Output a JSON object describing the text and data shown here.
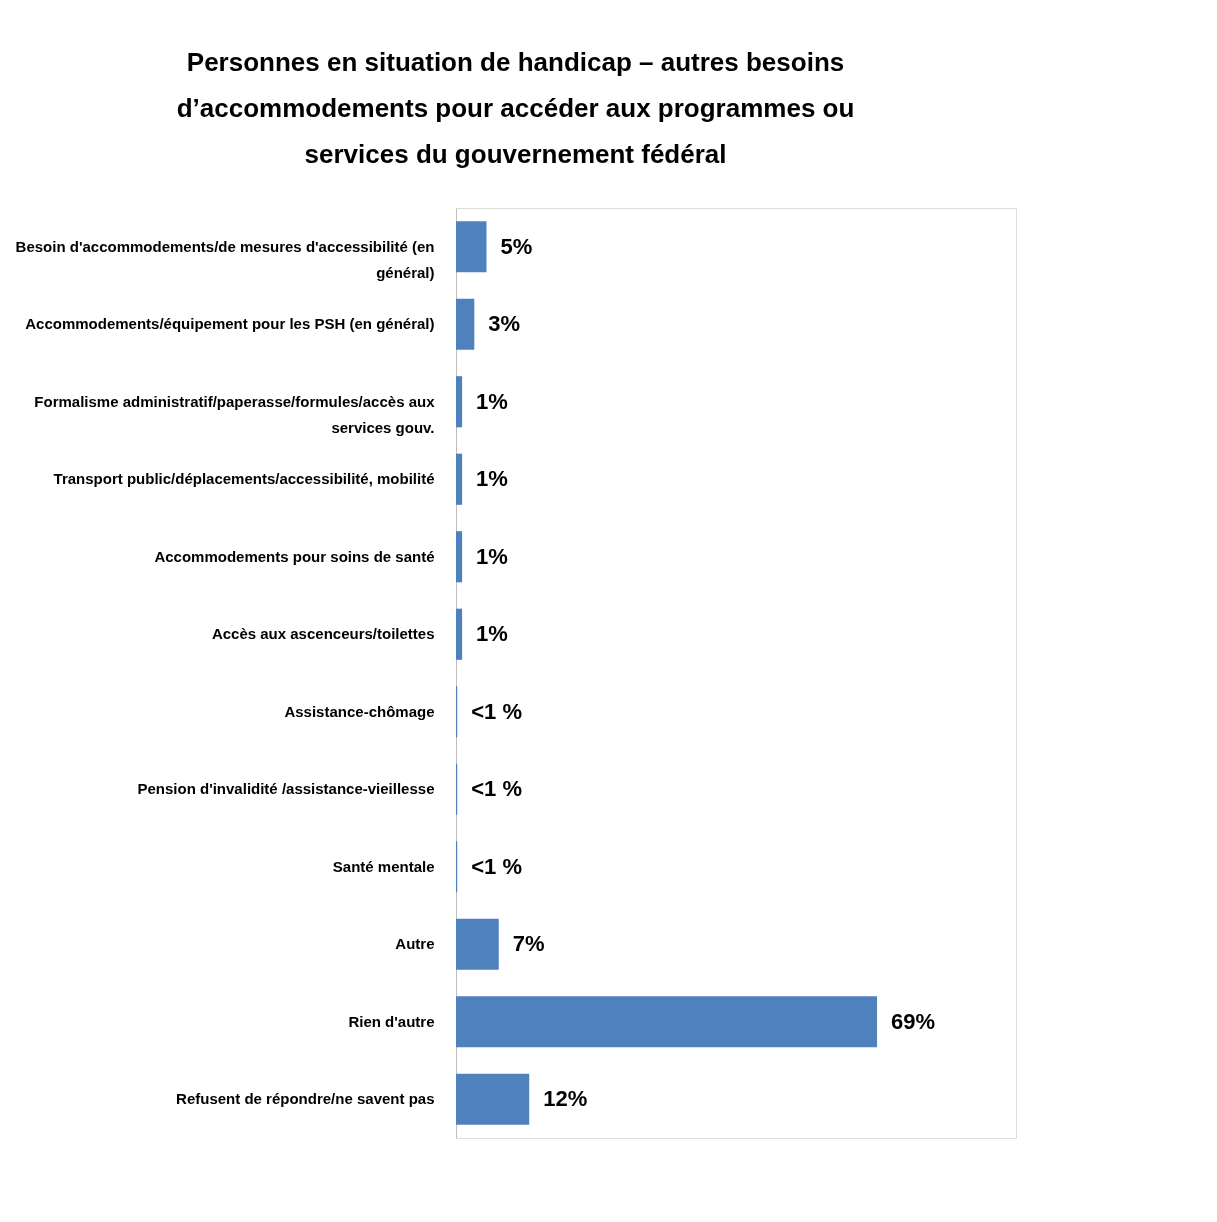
{
  "chart_data": {
    "type": "bar",
    "orientation": "horizontal",
    "title": [
      "Personnes en situation de handicap – autres besoins",
      "d’accommodements pour accéder aux programmes ou",
      "services du gouvernement fédéral"
    ],
    "categories": [
      "Besoin d'accommodements/de mesures d'accessibilité (en général)",
      "Accommodements/équipement pour les PSH (en général)",
      "Formalisme administratif/paperasse/formules/accès aux services gouv.",
      "Transport public/déplacements/accessibilité, mobilité",
      "Accommodements pour soins de santé",
      "Accès aux ascenceurs/toilettes",
      "Assistance-chômage",
      "Pension d'invalidité /assistance-vieillesse",
      "Santé mentale",
      "Autre",
      "Rien d'autre",
      "Refusent de répondre/ne savent pas"
    ],
    "values": [
      5,
      3,
      1,
      1,
      1,
      1,
      0.2,
      0.2,
      0.2,
      7,
      69,
      12
    ],
    "value_labels": [
      "5%",
      "3%",
      "1%",
      "1%",
      "1%",
      "1%",
      "<1 %",
      "<1 %",
      "<1 %",
      "7%",
      "69%",
      "12%"
    ],
    "color": "#4f81bd",
    "grid": false
  }
}
